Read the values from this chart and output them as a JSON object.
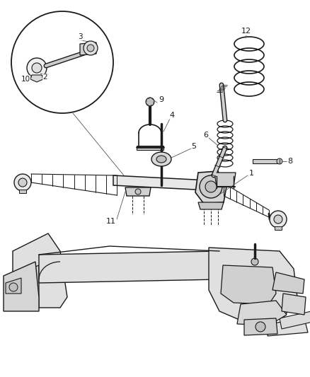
{
  "bg_color": "#ffffff",
  "line_color": "#1a1a1a",
  "fig_width": 4.38,
  "fig_height": 5.33,
  "dpi": 100
}
